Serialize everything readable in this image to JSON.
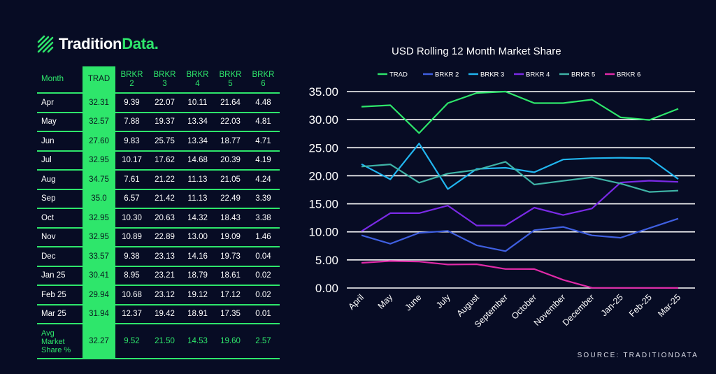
{
  "brand": {
    "name_part1": "Tradition",
    "name_part2": "Data."
  },
  "table": {
    "headers": [
      "Month",
      "TRAD",
      "BRKR\n2",
      "BRKR\n3",
      "BRKR\n4",
      "BRKR\n5",
      "BRKR\n6"
    ],
    "rows": [
      [
        "Apr",
        "32.31",
        "9.39",
        "22.07",
        "10.11",
        "21.64",
        "4.48"
      ],
      [
        "May",
        "32.57",
        "7.88",
        "19.37",
        "13.34",
        "22.03",
        "4.81"
      ],
      [
        "Jun",
        "27.60",
        "9.83",
        "25.75",
        "13.34",
        "18.77",
        "4.71"
      ],
      [
        "Jul",
        "32.95",
        "10.17",
        "17.62",
        "14.68",
        "20.39",
        "4.19"
      ],
      [
        "Aug",
        "34.75",
        "7.61",
        "21.22",
        "11.13",
        "21.05",
        "4.24"
      ],
      [
        "Sep",
        "35.0",
        "6.57",
        "21.42",
        "11.13",
        "22.49",
        "3.39"
      ],
      [
        "Oct",
        "32.95",
        "10.30",
        "20.63",
        "14.32",
        "18.43",
        "3.38"
      ],
      [
        "Nov",
        "32.95",
        "10.89",
        "22.89",
        "13.00",
        "19.09",
        "1.46"
      ],
      [
        "Dec",
        "33.57",
        "9.38",
        "23.13",
        "14.16",
        "19.73",
        "0.04"
      ],
      [
        "Jan 25",
        "30.41",
        "8.95",
        "23.21",
        "18.79",
        "18.61",
        "0.02"
      ],
      [
        "Feb 25",
        "29.94",
        "10.68",
        "23.12",
        "19.12",
        "17.12",
        "0.02"
      ],
      [
        "Mar 25",
        "31.94",
        "12.37",
        "19.42",
        "18.91",
        "17.35",
        "0.01"
      ]
    ],
    "avg_row": [
      "Avg\nMarket\nShare %",
      "32.27",
      "9.52",
      "21.50",
      "14.53",
      "19.60",
      "2.57"
    ]
  },
  "chart_data": {
    "type": "line",
    "title": "USD Rolling 12 Month Market Share",
    "categories": [
      "April",
      "May",
      "June",
      "July",
      "August",
      "September",
      "October",
      "November",
      "December",
      "Jan-25",
      "Feb-25",
      "Mar-25"
    ],
    "ylim": [
      0,
      35
    ],
    "yticks": [
      "0.00",
      "5.00",
      "10.00",
      "15.00",
      "20.00",
      "25.00",
      "30.00",
      "35.00"
    ],
    "grid": true,
    "legend_position": "top",
    "series": [
      {
        "name": "TRAD",
        "color": "#2ee66b",
        "values": [
          32.31,
          32.57,
          27.6,
          32.95,
          34.75,
          35.0,
          32.95,
          32.95,
          33.57,
          30.41,
          29.94,
          31.94
        ]
      },
      {
        "name": "BRKR 2",
        "color": "#3f5fe0",
        "values": [
          9.39,
          7.88,
          9.83,
          10.17,
          7.61,
          6.57,
          10.3,
          10.89,
          9.38,
          8.95,
          10.68,
          12.37
        ]
      },
      {
        "name": "BRKR 3",
        "color": "#21b6f0",
        "values": [
          22.07,
          19.37,
          25.75,
          17.62,
          21.22,
          21.42,
          20.63,
          22.89,
          23.13,
          23.21,
          23.12,
          19.42
        ]
      },
      {
        "name": "BRKR 4",
        "color": "#7a2ae6",
        "values": [
          10.11,
          13.34,
          13.34,
          14.68,
          11.13,
          11.13,
          14.32,
          13.0,
          14.16,
          18.79,
          19.12,
          18.91
        ]
      },
      {
        "name": "BRKR 5",
        "color": "#3fb3a6",
        "values": [
          21.64,
          22.03,
          18.77,
          20.39,
          21.05,
          22.49,
          18.43,
          19.09,
          19.73,
          18.61,
          17.12,
          17.35
        ]
      },
      {
        "name": "BRKR 6",
        "color": "#e02aa8",
        "values": [
          4.48,
          4.81,
          4.71,
          4.19,
          4.24,
          3.39,
          3.38,
          1.46,
          0.04,
          0.02,
          0.02,
          0.01
        ]
      }
    ]
  },
  "source": "SOURCE: TRADITIONDATA"
}
